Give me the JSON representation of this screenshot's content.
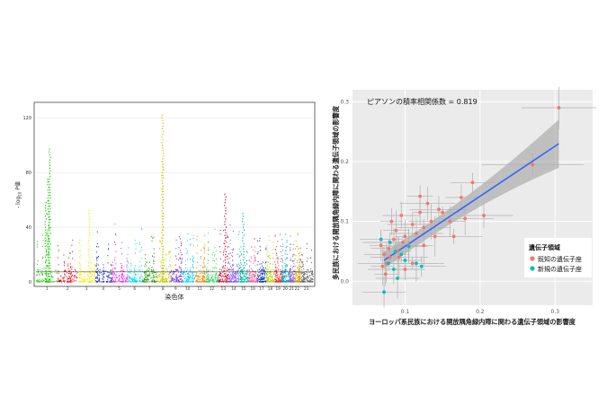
{
  "chart_data": [
    {
      "type": "scatter",
      "subtype": "manhattan",
      "xlabel": "染色体",
      "ylabel": "- log10 P値",
      "ylabel_parts": {
        "prefix": "- log",
        "sub": "10",
        "suffix": " P値"
      },
      "ylim": [
        0,
        130
      ],
      "yticks": [
        0,
        40,
        80,
        120
      ],
      "ytick_labels": [
        "0",
        "40",
        "80",
        "120"
      ],
      "chromosomes": [
        "1",
        "2",
        "3",
        "4",
        "5",
        "6",
        "7",
        "8",
        "9",
        "10",
        "11",
        "12",
        "13",
        "14",
        "15",
        "16",
        "17",
        "18",
        "19",
        "20",
        "21",
        "22",
        "23"
      ],
      "chromosome_colors": [
        "#19c800",
        "#e8000b",
        "#f5ea00",
        "#1826c9",
        "#e620e6",
        "#00d8e8",
        "#1f9a00",
        "#c9c900",
        "#7a2fd6",
        "#00d1ff",
        "#f08a00",
        "#2ad65a",
        "#c2103a",
        "#7a4dff",
        "#00b89c",
        "#ff5a9e",
        "#0032a8",
        "#b3d400",
        "#ff2a2a",
        "#00a0c8",
        "#8a5cd6",
        "#d6a000",
        "#5a5a5a"
      ],
      "threshold_line": 7.3,
      "peaks": [
        {
          "chromosome": "1",
          "value": 97
        },
        {
          "chromosome": "1",
          "value": 75
        },
        {
          "chromosome": "1",
          "value": 58
        },
        {
          "chromosome": "3",
          "value": 52
        },
        {
          "chromosome": "8",
          "value": 122
        },
        {
          "chromosome": "8",
          "value": 90
        },
        {
          "chromosome": "13",
          "value": 64
        },
        {
          "chromosome": "15",
          "value": 50
        }
      ],
      "grid": true
    },
    {
      "type": "scatter",
      "annotation": "ピアソンの積率相関係数 = 0.819",
      "xlabel": "ヨーロッパ系民族における開放隅角緑内障に関わる遺伝子領域の影響度",
      "ylabel": "多民族における開放隅角緑内障に関わる遺伝子領域の影響度",
      "xlim": [
        0.03,
        0.35
      ],
      "ylim": [
        -0.04,
        0.32
      ],
      "xticks": [
        0.1,
        0.2,
        0.3
      ],
      "xtick_labels": [
        "0.1",
        "0.2",
        "0.3"
      ],
      "yticks": [
        0.0,
        0.1,
        0.2,
        0.3
      ],
      "ytick_labels": [
        "0.0",
        "0.1",
        "0.2",
        "0.3"
      ],
      "legend": {
        "title": "遺伝子領域",
        "position": "right",
        "entries": [
          {
            "label": "既知の遺伝子座",
            "color": "#f8766d"
          },
          {
            "label": "新規の遺伝子座",
            "color": "#00bfc4"
          }
        ]
      },
      "series": [
        {
          "name": "既知の遺伝子座",
          "color": "#f8766d",
          "points": [
            [
              0.305,
              0.29
            ],
            [
              0.27,
              0.195
            ],
            [
              0.19,
              0.165
            ],
            [
              0.205,
              0.11
            ],
            [
              0.175,
              0.14
            ],
            [
              0.18,
              0.105
            ],
            [
              0.16,
              0.1
            ],
            [
              0.15,
              0.115
            ],
            [
              0.13,
              0.13
            ],
            [
              0.125,
              0.09
            ],
            [
              0.12,
              0.142
            ],
            [
              0.115,
              0.08
            ],
            [
              0.11,
              0.095
            ],
            [
              0.105,
              0.06
            ],
            [
              0.1,
              0.075
            ],
            [
              0.095,
              0.11
            ],
            [
              0.09,
              0.05
            ],
            [
              0.085,
              0.07
            ],
            [
              0.08,
              0.04
            ],
            [
              0.078,
              0.055
            ],
            [
              0.075,
              0.03
            ],
            [
              0.072,
              0.045
            ],
            [
              0.07,
              0.025
            ],
            [
              0.068,
              0.06
            ],
            [
              0.1,
              0.02
            ],
            [
              0.11,
              0.03
            ],
            [
              0.125,
              0.06
            ],
            [
              0.135,
              0.1
            ],
            [
              0.14,
              0.075
            ],
            [
              0.165,
              0.075
            ],
            [
              0.088,
              0.085
            ],
            [
              0.092,
              0.04
            ],
            [
              0.082,
              0.1
            ],
            [
              0.097,
              0.065
            ],
            [
              0.074,
              0.012
            ],
            [
              0.12,
              0.115
            ],
            [
              0.145,
              0.12
            ]
          ]
        },
        {
          "name": "新規の遺伝子座",
          "color": "#00bfc4",
          "points": [
            [
              0.072,
              -0.018
            ],
            [
              0.08,
              0.065
            ],
            [
              0.085,
              0.02
            ],
            [
              0.09,
              0.005
            ],
            [
              0.095,
              0.045
            ],
            [
              0.1,
              0.035
            ],
            [
              0.105,
              0.058
            ],
            [
              0.115,
              0.03
            ],
            [
              0.078,
              0.03
            ],
            [
              0.068,
              0.07
            ],
            [
              0.122,
              0.025
            ],
            [
              0.087,
              0.05
            ]
          ]
        }
      ],
      "fit_line": {
        "x": [
          0.072,
          0.305
        ],
        "y": [
          0.035,
          0.23
        ]
      },
      "grid": true
    }
  ]
}
